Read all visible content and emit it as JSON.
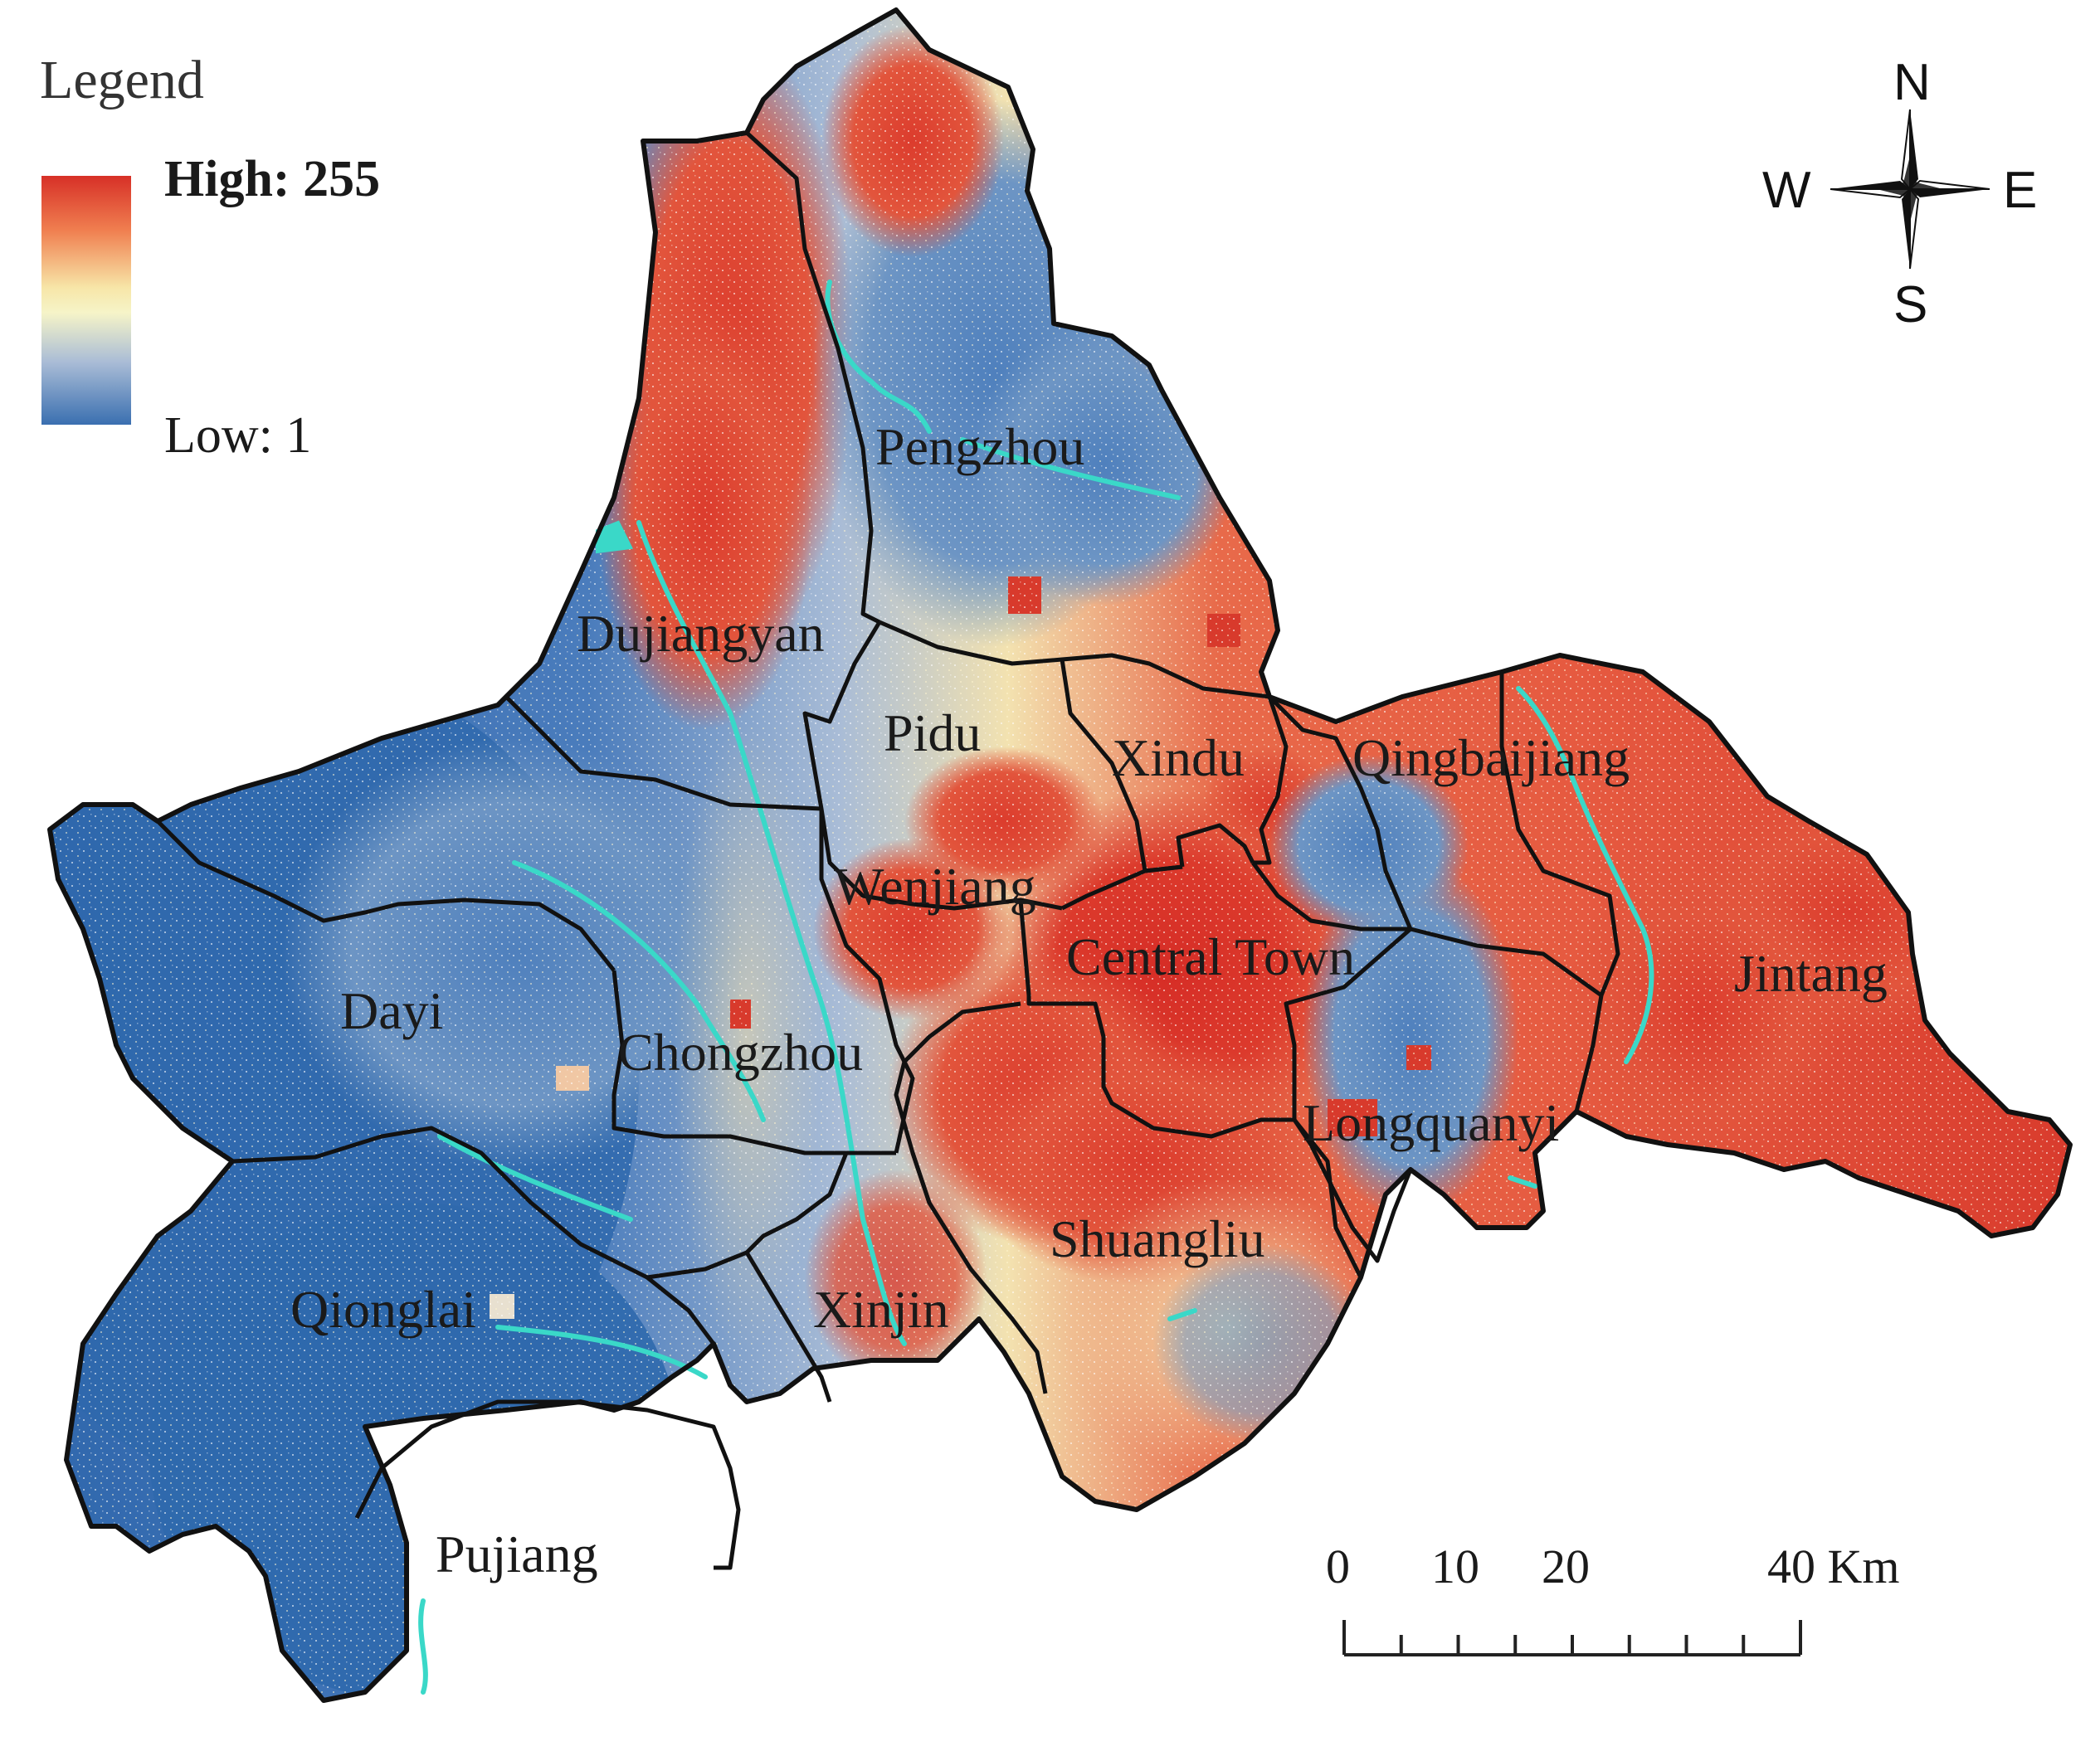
{
  "legend": {
    "title": "Legend",
    "high_label": "High: 255",
    "low_label": "Low: 1",
    "high_value": 255,
    "low_value": 1,
    "ramp_colors": [
      "#d73027",
      "#f07f50",
      "#f7e6a8",
      "#f6f4c8",
      "#a9bcd6",
      "#3a6fb0"
    ]
  },
  "compass": {
    "north": "N",
    "south": "S",
    "east": "E",
    "west": "W"
  },
  "scale_bar": {
    "unit": "Km",
    "tick_labels": [
      "0",
      "10",
      "20",
      "40 Km"
    ],
    "ticks_km": [
      0,
      10,
      20,
      40
    ]
  },
  "districts": [
    {
      "name": "Pengzhou",
      "value_class": "low"
    },
    {
      "name": "Dujiangyan",
      "value_class": "high"
    },
    {
      "name": "Pidu",
      "value_class": "mixed"
    },
    {
      "name": "Xindu",
      "value_class": "mixed"
    },
    {
      "name": "Qingbaijiang",
      "value_class": "mixed"
    },
    {
      "name": "Wenjiang",
      "value_class": "mixed"
    },
    {
      "name": "Central Town",
      "value_class": "high"
    },
    {
      "name": "Jintang",
      "value_class": "high"
    },
    {
      "name": "Dayi",
      "value_class": "low"
    },
    {
      "name": "Chongzhou",
      "value_class": "low"
    },
    {
      "name": "Longquanyi",
      "value_class": "mixed"
    },
    {
      "name": "Shuangliu",
      "value_class": "high"
    },
    {
      "name": "Qionglai",
      "value_class": "low"
    },
    {
      "name": "Xinjin",
      "value_class": "mixed"
    },
    {
      "name": "Pujiang",
      "value_class": "low"
    }
  ],
  "colors": {
    "high": "#d73027",
    "mid": "#f7e6a8",
    "low": "#3a6fb0",
    "river": "#3ad8c8"
  }
}
